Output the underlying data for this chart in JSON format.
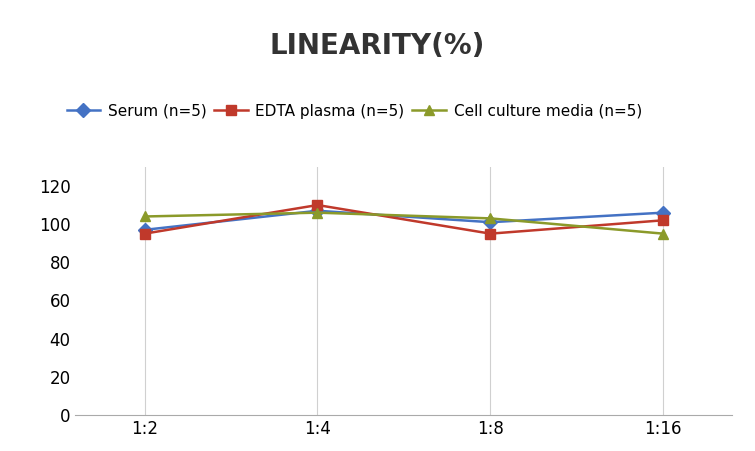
{
  "title": "LINEARITY(%)",
  "x_labels": [
    "1:2",
    "1:4",
    "1:8",
    "1:16"
  ],
  "series": [
    {
      "label": "Serum (n=5)",
      "values": [
        97,
        107,
        101,
        106
      ],
      "color": "#4472C4",
      "marker": "D"
    },
    {
      "label": "EDTA plasma (n=5)",
      "values": [
        95,
        110,
        95,
        102
      ],
      "color": "#C0392B",
      "marker": "s"
    },
    {
      "label": "Cell culture media (n=5)",
      "values": [
        104,
        106,
        103,
        95
      ],
      "color": "#8B9A2A",
      "marker": "^"
    }
  ],
  "ylim": [
    0,
    130
  ],
  "yticks": [
    0,
    20,
    40,
    60,
    80,
    100,
    120
  ],
  "background_color": "#ffffff",
  "title_fontsize": 20,
  "legend_fontsize": 11,
  "tick_fontsize": 12,
  "linewidth": 1.8,
  "marker_size": 7,
  "grid_color": "#d0d0d0",
  "grid_linewidth": 0.8,
  "spine_color": "#aaaaaa"
}
